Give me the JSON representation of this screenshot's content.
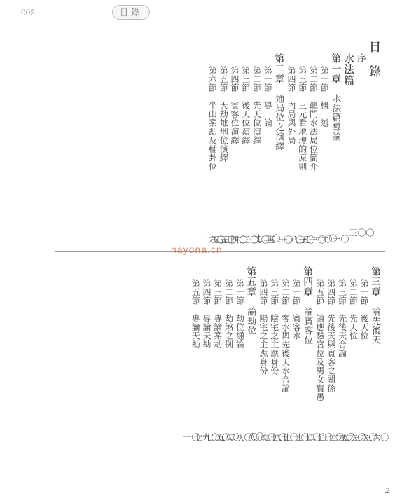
{
  "header": {
    "page_small": "005",
    "tab": "目錄"
  },
  "title": "目　錄",
  "watermark": "nayona.cn",
  "footer_page": "2",
  "dots": "︰︰︰︰︰︰︰︰︰︰︰︰︰︰︰︰︰︰︰︰︰︰︰︰︰︰︰︰︰︰︰",
  "upper": [
    {
      "type": "title",
      "text": "目　錄"
    },
    {
      "type": "preface",
      "text": "序",
      "page": "〇〇三"
    },
    {
      "type": "part",
      "text": "水法篇"
    },
    {
      "type": "chapter",
      "heading": "第一章",
      "sub": "水法篇導論",
      "page": "〇一〇"
    },
    {
      "type": "section",
      "heading": "第一節",
      "sub": "概　述",
      "page": "〇一一"
    },
    {
      "type": "section",
      "heading": "第二節",
      "sub": "龍門水法局位簡介",
      "page": "〇一五"
    },
    {
      "type": "section",
      "heading": "第三節",
      "sub": "三元看地理的原則",
      "page": "〇一八"
    },
    {
      "type": "section",
      "heading": "第四節",
      "sub": "內局與外局",
      "page": "〇二一"
    },
    {
      "type": "chapter",
      "heading": "第二章",
      "sub": "通局位之演繹",
      "page": "〇二五"
    },
    {
      "type": "section",
      "heading": "第一節",
      "sub": "導　論",
      "page": "〇二七"
    },
    {
      "type": "section",
      "heading": "第二節",
      "sub": "先天位演繹",
      "page": "〇三二"
    },
    {
      "type": "section",
      "heading": "第三節",
      "sub": "後天位演繹",
      "page": "〇三六"
    },
    {
      "type": "section",
      "heading": "第四節",
      "sub": "賓客位演繹",
      "page": "〇四五"
    },
    {
      "type": "section",
      "heading": "第五節",
      "sub": "天劫地刑位演繹",
      "page": "〇五五"
    },
    {
      "type": "section",
      "heading": "第六節",
      "sub": "坐山案劫及輔卦位",
      "page": "〇六二"
    }
  ],
  "lower": [
    {
      "type": "chapter",
      "heading": "第三章",
      "sub": "論先後天",
      "page": "〇六三"
    },
    {
      "type": "section",
      "heading": "第一節",
      "sub": "後天位",
      "page": "〇六三"
    },
    {
      "type": "section",
      "heading": "第二節",
      "sub": "先天位",
      "page": "〇六五"
    },
    {
      "type": "section",
      "heading": "第三節",
      "sub": "先後天合論",
      "page": "〇六七"
    },
    {
      "type": "section",
      "heading": "第四節",
      "sub": "先後天與賓客之關係",
      "page": "〇七〇"
    },
    {
      "type": "section",
      "heading": "第五節",
      "sub": "論應驗宮位及男女賢愚",
      "page": "〇七二"
    },
    {
      "type": "chapter",
      "heading": "第四章",
      "sub": "論賓客位",
      "page": "〇七七"
    },
    {
      "type": "section",
      "heading": "第一節",
      "sub": "賓客水",
      "page": "〇七七"
    },
    {
      "type": "section",
      "heading": "第二節",
      "sub": "客水與先後天水合論",
      "page": "〇七八"
    },
    {
      "type": "section",
      "heading": "第三節",
      "sub": "陰宅之主應身份",
      "page": "〇七九"
    },
    {
      "type": "section",
      "heading": "第四節",
      "sub": "陽宅之主應身份",
      "page": "〇八〇"
    },
    {
      "type": "chapter",
      "heading": "第五章",
      "sub": "論劫位",
      "page": "〇八一"
    },
    {
      "type": "section",
      "heading": "第一節",
      "sub": "劫位通論",
      "page": "〇八二"
    },
    {
      "type": "section",
      "heading": "第二節",
      "sub": "劫煞之例",
      "page": "〇八五"
    },
    {
      "type": "section",
      "heading": "第三節",
      "sub": "專論案劫",
      "page": "〇八七"
    },
    {
      "type": "section",
      "heading": "第四節",
      "sub": "專論天劫",
      "page": "〇九七"
    },
    {
      "type": "section",
      "heading": "第五節",
      "sub": "專論天劫",
      "page": "一〇一"
    }
  ]
}
